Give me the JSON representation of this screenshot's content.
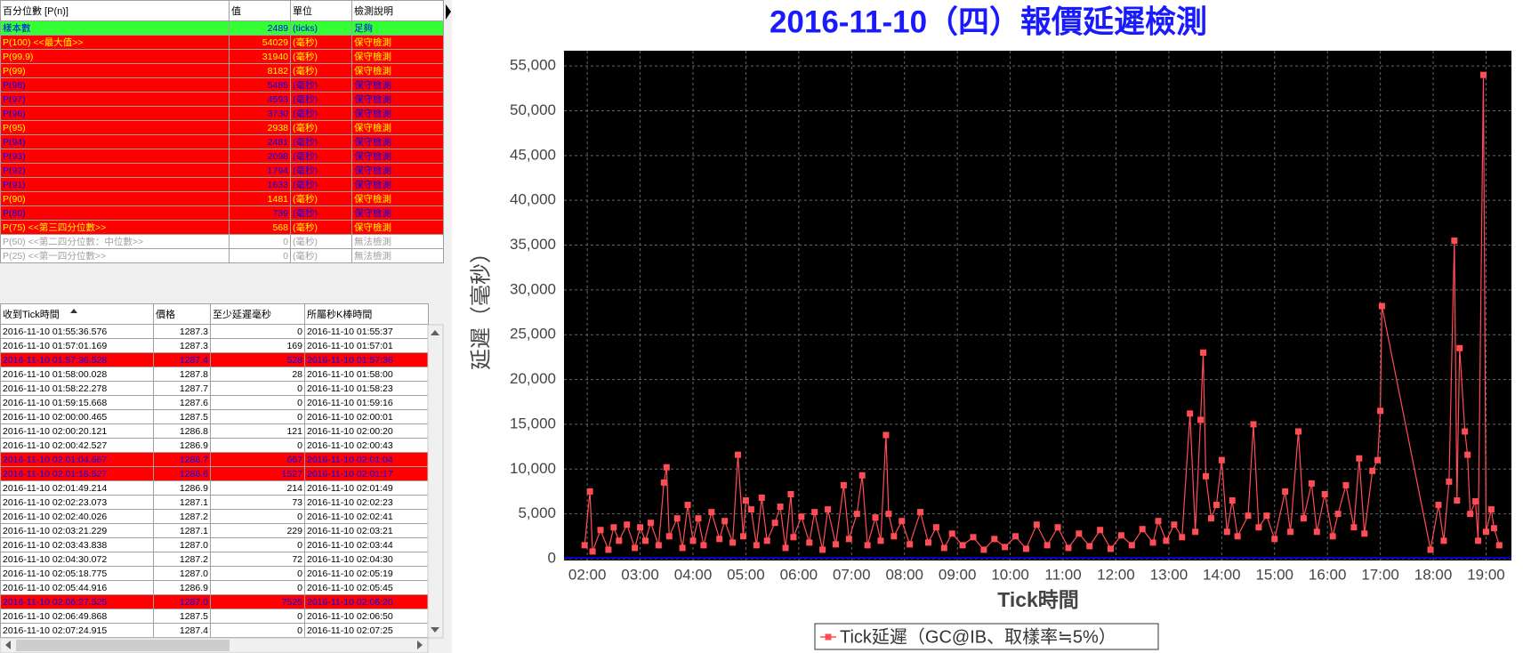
{
  "percentile_table": {
    "header": [
      "百分位數 [P(n)]",
      "值",
      "單位",
      "檢測說明"
    ],
    "rows": [
      {
        "label": "樣本數",
        "value": 2489,
        "unit": "(ticks)",
        "note": "足夠",
        "background": "#33ff33",
        "text_color": "#0000ff",
        "bold": false
      },
      {
        "label": "P(100) <<最大值>>",
        "value": 54029,
        "unit": "(毫秒)",
        "note": "保守檢測",
        "background": "#ff0000",
        "text_color": "#ffff00",
        "bold": true
      },
      {
        "label": "P(99.9)",
        "value": 31940,
        "unit": "(毫秒)",
        "note": "保守檢測",
        "background": "#ff0000",
        "text_color": "#ffff00",
        "bold": true
      },
      {
        "label": "P(99)",
        "value": 8182,
        "unit": "(毫秒)",
        "note": "保守檢測",
        "background": "#ff0000",
        "text_color": "#ffff00",
        "bold": true
      },
      {
        "label": "P(98)",
        "value": 5485,
        "unit": "(毫秒)",
        "note": "保守檢測",
        "background": "#ff0000",
        "text_color": "#0000ff",
        "bold": false
      },
      {
        "label": "P(97)",
        "value": 4593,
        "unit": "(毫秒)",
        "note": "保守檢測",
        "background": "#ff0000",
        "text_color": "#0000ff",
        "bold": false
      },
      {
        "label": "P(96)",
        "value": 3730,
        "unit": "(毫秒)",
        "note": "保守檢測",
        "background": "#ff0000",
        "text_color": "#0000ff",
        "bold": false
      },
      {
        "label": "P(95)",
        "value": 2938,
        "unit": "(毫秒)",
        "note": "保守檢測",
        "background": "#ff0000",
        "text_color": "#ffff00",
        "bold": true
      },
      {
        "label": "P(94)",
        "value": 2481,
        "unit": "(毫秒)",
        "note": "保守檢測",
        "background": "#ff0000",
        "text_color": "#0000ff",
        "bold": false
      },
      {
        "label": "P(93)",
        "value": 2098,
        "unit": "(毫秒)",
        "note": "保守檢測",
        "background": "#ff0000",
        "text_color": "#0000ff",
        "bold": false
      },
      {
        "label": "P(92)",
        "value": 1794,
        "unit": "(毫秒)",
        "note": "保守檢測",
        "background": "#ff0000",
        "text_color": "#0000ff",
        "bold": false
      },
      {
        "label": "P(91)",
        "value": 1633,
        "unit": "(毫秒)",
        "note": "保守檢測",
        "background": "#ff0000",
        "text_color": "#0000ff",
        "bold": false
      },
      {
        "label": "P(90)",
        "value": 1481,
        "unit": "(毫秒)",
        "note": "保守檢測",
        "background": "#ff0000",
        "text_color": "#ffff00",
        "bold": true
      },
      {
        "label": "P(80)",
        "value": 739,
        "unit": "(毫秒)",
        "note": "保守檢測",
        "background": "#ff0000",
        "text_color": "#0000ff",
        "bold": false
      },
      {
        "label": "P(75) <<第三四分位數>>",
        "value": 568,
        "unit": "(毫秒)",
        "note": "保守檢測",
        "background": "#ff0000",
        "text_color": "#ffff00",
        "bold": true
      },
      {
        "label": "P(50) <<第二四分位數：中位數>>",
        "value": 0,
        "unit": "(毫秒)",
        "note": "無法檢測",
        "background": "#ffffff",
        "text_color": "#a0a0a0",
        "bold": false
      },
      {
        "label": "P(25) <<第一四分位數>>",
        "value": 0,
        "unit": "(毫秒)",
        "note": "無法檢測",
        "background": "#ffffff",
        "text_color": "#a0a0a0",
        "bold": false
      }
    ]
  },
  "tick_table": {
    "header": [
      "收到Tick時間",
      "價格",
      "至少延遲毫秒",
      "所屬秒K棒時間"
    ],
    "rows": [
      {
        "cells": [
          "2016-11-10 01:55:36.576",
          "1287.3",
          "0",
          "2016-11-10 01:55:37"
        ],
        "background": "#ffffff",
        "text_color": "#000000"
      },
      {
        "cells": [
          "2016-11-10 01:57:01.169",
          "1287.3",
          "169",
          "2016-11-10 01:57:01"
        ],
        "background": "#ffffff",
        "text_color": "#000000"
      },
      {
        "cells": [
          "2016-11-10 01:57:36.528",
          "1287.4",
          "528",
          "2016-11-10 01:57:36"
        ],
        "background": "#ff0000",
        "text_color": "#0000ff"
      },
      {
        "cells": [
          "2016-11-10 01:58:00.028",
          "1287.8",
          "28",
          "2016-11-10 01:58:00"
        ],
        "background": "#ffffff",
        "text_color": "#000000"
      },
      {
        "cells": [
          "2016-11-10 01:58:22.278",
          "1287.7",
          "0",
          "2016-11-10 01:58:23"
        ],
        "background": "#ffffff",
        "text_color": "#000000"
      },
      {
        "cells": [
          "2016-11-10 01:59:15.668",
          "1287.6",
          "0",
          "2016-11-10 01:59:16"
        ],
        "background": "#ffffff",
        "text_color": "#000000"
      },
      {
        "cells": [
          "2016-11-10 02:00:00.465",
          "1287.5",
          "0",
          "2016-11-10 02:00:01"
        ],
        "background": "#ffffff",
        "text_color": "#000000"
      },
      {
        "cells": [
          "2016-11-10 02:00:20.121",
          "1286.8",
          "121",
          "2016-11-10 02:00:20"
        ],
        "background": "#ffffff",
        "text_color": "#000000"
      },
      {
        "cells": [
          "2016-11-10 02:00:42.527",
          "1286.9",
          "0",
          "2016-11-10 02:00:43"
        ],
        "background": "#ffffff",
        "text_color": "#000000"
      },
      {
        "cells": [
          "2016-11-10 02:01:04.667",
          "1286.7",
          "667",
          "2016-11-10 02:01:04"
        ],
        "background": "#ff0000",
        "text_color": "#0000ff"
      },
      {
        "cells": [
          "2016-11-10 02:01:18.527",
          "1286.6",
          "1527",
          "2016-11-10 02:01:17"
        ],
        "background": "#ff0000",
        "text_color": "#0000ff"
      },
      {
        "cells": [
          "2016-11-10 02:01:49.214",
          "1286.9",
          "214",
          "2016-11-10 02:01:49"
        ],
        "background": "#ffffff",
        "text_color": "#000000"
      },
      {
        "cells": [
          "2016-11-10 02:02:23.073",
          "1287.1",
          "73",
          "2016-11-10 02:02:23"
        ],
        "background": "#ffffff",
        "text_color": "#000000"
      },
      {
        "cells": [
          "2016-11-10 02:02:40.026",
          "1287.2",
          "0",
          "2016-11-10 02:02:41"
        ],
        "background": "#ffffff",
        "text_color": "#000000"
      },
      {
        "cells": [
          "2016-11-10 02:03:21.229",
          "1287.1",
          "229",
          "2016-11-10 02:03:21"
        ],
        "background": "#ffffff",
        "text_color": "#000000"
      },
      {
        "cells": [
          "2016-11-10 02:03:43.838",
          "1287.0",
          "0",
          "2016-11-10 02:03:44"
        ],
        "background": "#ffffff",
        "text_color": "#000000"
      },
      {
        "cells": [
          "2016-11-10 02:04:30.072",
          "1287.2",
          "72",
          "2016-11-10 02:04:30"
        ],
        "background": "#ffffff",
        "text_color": "#000000"
      },
      {
        "cells": [
          "2016-11-10 02:05:18.775",
          "1287.0",
          "0",
          "2016-11-10 02:05:19"
        ],
        "background": "#ffffff",
        "text_color": "#000000"
      },
      {
        "cells": [
          "2016-11-10 02:05:44.916",
          "1286.9",
          "0",
          "2016-11-10 02:05:45"
        ],
        "background": "#ffffff",
        "text_color": "#000000"
      },
      {
        "cells": [
          "2016-11-10 02:06:27.525",
          "1287.0",
          "7525",
          "2016-11-10 02:06:20"
        ],
        "background": "#ff0000",
        "text_color": "#0000ff"
      },
      {
        "cells": [
          "2016-11-10 02:06:49.868",
          "1287.5",
          "0",
          "2016-11-10 02:06:50"
        ],
        "background": "#ffffff",
        "text_color": "#000000"
      },
      {
        "cells": [
          "2016-11-10 02:07:24.915",
          "1287.4",
          "0",
          "2016-11-10 02:07:25"
        ],
        "background": "#ffffff",
        "text_color": "#000000"
      }
    ]
  },
  "chart_data": {
    "type": "line",
    "title": "2016-11-10（四）報價延遲檢測",
    "title_color": "#1a1aff",
    "background": "#000000",
    "x_label": "Tick時間",
    "y_label": "延遲（毫秒）",
    "grid": true,
    "legend_position": "bottom",
    "x": [
      1.95,
      2.05,
      2.1,
      2.25,
      2.4,
      2.5,
      2.6,
      2.75,
      2.9,
      3.0,
      3.1,
      3.2,
      3.35,
      3.45,
      3.5,
      3.55,
      3.7,
      3.8,
      3.9,
      4.0,
      4.1,
      4.2,
      4.35,
      4.5,
      4.6,
      4.75,
      4.85,
      4.95,
      5.0,
      5.1,
      5.2,
      5.3,
      5.4,
      5.55,
      5.65,
      5.75,
      5.85,
      5.9,
      6.05,
      6.2,
      6.3,
      6.45,
      6.55,
      6.7,
      6.85,
      6.95,
      7.1,
      7.2,
      7.3,
      7.45,
      7.55,
      7.65,
      7.7,
      7.8,
      7.95,
      8.1,
      8.3,
      8.45,
      8.6,
      8.75,
      8.9,
      9.1,
      9.3,
      9.5,
      9.7,
      9.9,
      10.1,
      10.3,
      10.5,
      10.7,
      10.9,
      11.1,
      11.3,
      11.5,
      11.7,
      11.9,
      12.1,
      12.3,
      12.5,
      12.7,
      12.8,
      12.95,
      13.1,
      13.25,
      13.4,
      13.5,
      13.6,
      13.65,
      13.7,
      13.8,
      13.9,
      14.0,
      14.1,
      14.2,
      14.3,
      14.5,
      14.6,
      14.7,
      14.85,
      15.0,
      15.2,
      15.3,
      15.45,
      15.55,
      15.7,
      15.8,
      15.95,
      16.1,
      16.2,
      16.35,
      16.5,
      16.6,
      16.7,
      16.85,
      16.95,
      17.0,
      17.03,
      17.95,
      18.1,
      18.2,
      18.3,
      18.4,
      18.45,
      18.5,
      18.6,
      18.65,
      18.7,
      18.8,
      18.85,
      18.95,
      19.0,
      19.1,
      19.15,
      19.25
    ],
    "series": [
      {
        "name": "Tick延遲（GC@IB、取樣率≒5%）",
        "color": "#ff4d55",
        "values": [
          1500,
          7500,
          800,
          3200,
          1000,
          3500,
          2000,
          3800,
          1200,
          3500,
          2000,
          4000,
          1500,
          8500,
          10200,
          2500,
          4500,
          1200,
          6000,
          2000,
          4500,
          1500,
          5200,
          2200,
          4200,
          1800,
          11600,
          2500,
          6500,
          5500,
          1500,
          6800,
          2000,
          4000,
          5800,
          1200,
          7200,
          2400,
          4700,
          1800,
          5200,
          1000,
          5500,
          1600,
          8200,
          2200,
          5000,
          9300,
          1500,
          4600,
          2000,
          13800,
          5000,
          2500,
          4200,
          1600,
          5200,
          1800,
          3500,
          1200,
          2800,
          1500,
          2400,
          1000,
          2200,
          1300,
          2500,
          1100,
          3800,
          1500,
          3500,
          1200,
          2800,
          1400,
          3200,
          1100,
          2600,
          1500,
          3300,
          1800,
          4200,
          2000,
          3800,
          2400,
          16200,
          3000,
          15500,
          23000,
          9200,
          4500,
          6000,
          11000,
          3000,
          6500,
          2500,
          4800,
          15000,
          3500,
          4800,
          2200,
          7500,
          3000,
          14200,
          4500,
          8400,
          3000,
          7200,
          2500,
          5000,
          8200,
          3500,
          11200,
          2800,
          9800,
          11000,
          16500,
          28200,
          1000,
          6000,
          2000,
          8600,
          35500,
          6500,
          23500,
          14200,
          11600,
          5000,
          6400,
          2000,
          54000,
          3000,
          5500,
          3400,
          1500
        ]
      }
    ],
    "xlim": [
      1.56,
      19.48
    ],
    "xticks": [
      {
        "value": 2,
        "label": "02:00"
      },
      {
        "value": 3,
        "label": "03:00"
      },
      {
        "value": 4,
        "label": "04:00"
      },
      {
        "value": 5,
        "label": "05:00"
      },
      {
        "value": 6,
        "label": "06:00"
      },
      {
        "value": 7,
        "label": "07:00"
      },
      {
        "value": 8,
        "label": "08:00"
      },
      {
        "value": 9,
        "label": "09:00"
      },
      {
        "value": 10,
        "label": "10:00"
      },
      {
        "value": 11,
        "label": "11:00"
      },
      {
        "value": 12,
        "label": "12:00"
      },
      {
        "value": 13,
        "label": "13:00"
      },
      {
        "value": 14,
        "label": "14:00"
      },
      {
        "value": 15,
        "label": "15:00"
      },
      {
        "value": 16,
        "label": "16:00"
      },
      {
        "value": 17,
        "label": "17:00"
      },
      {
        "value": 18,
        "label": "18:00"
      },
      {
        "value": 19,
        "label": "19:00"
      }
    ],
    "ylim": [
      -200,
      56700
    ],
    "yticks": [
      0,
      {
        "value": 5000,
        "label": "5,000"
      },
      {
        "value": 10000,
        "label": "10,000"
      },
      {
        "value": 15000,
        "label": "15,000"
      },
      {
        "value": 20000,
        "label": "20,000"
      },
      {
        "value": 25000,
        "label": "25,000"
      },
      {
        "value": 30000,
        "label": "30,000"
      },
      {
        "value": 35000,
        "label": "35,000"
      },
      {
        "value": 40000,
        "label": "40,000"
      },
      {
        "value": 45000,
        "label": "45,000"
      },
      {
        "value": 50000,
        "label": "50,000"
      },
      {
        "value": 55000,
        "label": "55,000"
      }
    ]
  }
}
